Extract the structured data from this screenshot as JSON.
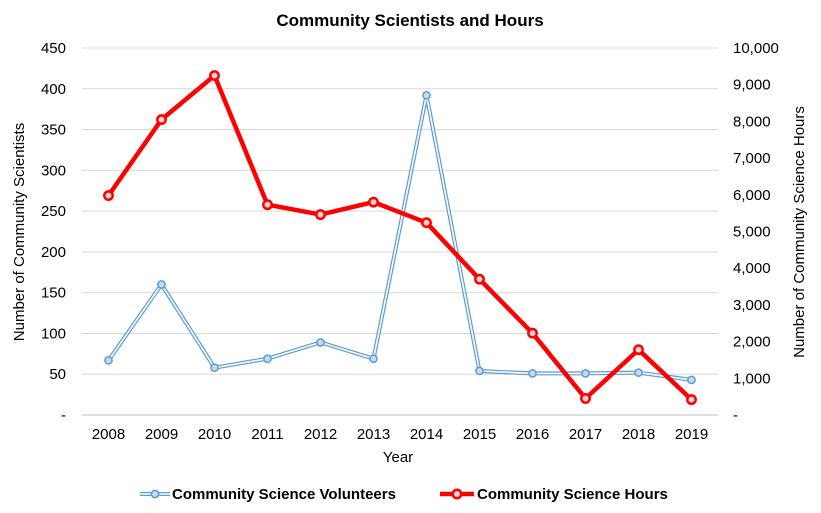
{
  "chart_data": {
    "type": "line",
    "title": "Community Scientists and Hours",
    "xlabel": "Year",
    "ylabel_left": "Number of Community Scientists",
    "ylabel_right": "Number of Community Science Hours",
    "categories": [
      "2008",
      "2009",
      "2010",
      "2011",
      "2012",
      "2013",
      "2014",
      "2015",
      "2016",
      "2017",
      "2018",
      "2019"
    ],
    "y_left": {
      "lim": [
        0,
        450
      ],
      "ticks": [
        0,
        50,
        100,
        150,
        200,
        250,
        300,
        350,
        400,
        450
      ],
      "tick_labels": [
        "-",
        "50",
        "100",
        "150",
        "200",
        "250",
        "300",
        "350",
        "400",
        "450"
      ]
    },
    "y_right": {
      "lim": [
        0,
        10000
      ],
      "ticks": [
        0,
        1000,
        2000,
        3000,
        4000,
        5000,
        6000,
        7000,
        8000,
        9000,
        10000
      ],
      "tick_labels": [
        "-",
        "1,000",
        "2,000",
        "3,000",
        "4,000",
        "5,000",
        "6,000",
        "7,000",
        "8,000",
        "9,000",
        "10,000"
      ]
    },
    "grid": true,
    "legend_position": "bottom",
    "series": [
      {
        "name": "Community Science Volunteers",
        "axis": "left",
        "color": "#5b9bd5",
        "values": [
          67,
          160,
          58,
          69,
          89,
          69,
          392,
          54,
          51,
          51,
          52,
          43
        ]
      },
      {
        "name": "Community Science Hours",
        "axis": "right",
        "color": "#ff0000",
        "values": [
          5980,
          8050,
          9250,
          5730,
          5460,
          5800,
          5240,
          3700,
          2230,
          450,
          1780,
          420
        ]
      }
    ]
  }
}
